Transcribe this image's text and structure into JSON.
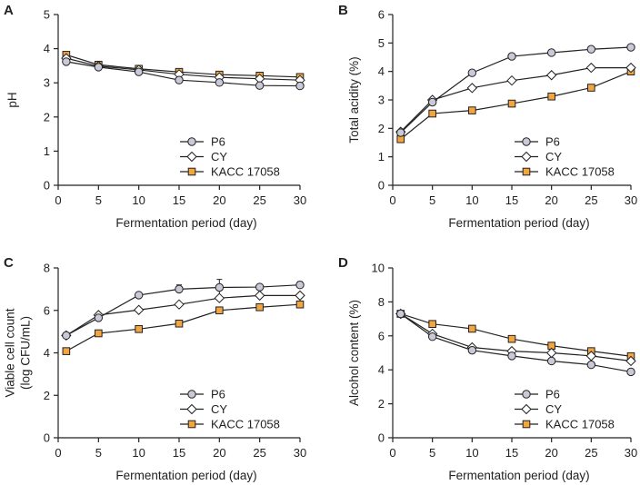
{
  "chart_data": [
    {
      "panel": "A",
      "type": "line",
      "x": [
        1,
        5,
        10,
        15,
        20,
        25,
        30
      ],
      "xlim": [
        0,
        30
      ],
      "xticks": [
        0,
        5,
        10,
        15,
        20,
        25,
        30
      ],
      "ylim": [
        0,
        5
      ],
      "yticks": [
        0,
        1,
        2,
        3,
        4,
        5
      ],
      "xlabel": "Fermentation period (day)",
      "ylabel": [
        "pH"
      ],
      "legend_position": "lower-right",
      "series": [
        {
          "name": "P6",
          "marker": "circle",
          "values": [
            3.62,
            3.46,
            3.32,
            3.08,
            3.01,
            2.92,
            2.91
          ]
        },
        {
          "name": "CY",
          "marker": "diamond",
          "values": [
            3.72,
            3.49,
            3.38,
            3.25,
            3.16,
            3.12,
            3.08
          ]
        },
        {
          "name": "KACC 17058",
          "marker": "square",
          "values": [
            3.82,
            3.53,
            3.41,
            3.32,
            3.24,
            3.21,
            3.17
          ]
        }
      ]
    },
    {
      "panel": "B",
      "type": "line",
      "x": [
        1,
        5,
        10,
        15,
        20,
        25,
        30
      ],
      "xlim": [
        0,
        30
      ],
      "xticks": [
        0,
        5,
        10,
        15,
        20,
        25,
        30
      ],
      "ylim": [
        0,
        6
      ],
      "yticks": [
        0,
        1,
        2,
        3,
        4,
        5,
        6
      ],
      "xlabel": "Fermentation period (day)",
      "ylabel": [
        "Total acidity (%)"
      ],
      "legend_position": "lower-right",
      "series": [
        {
          "name": "P6",
          "marker": "circle",
          "values": [
            1.85,
            2.92,
            3.95,
            4.53,
            4.66,
            4.78,
            4.85
          ]
        },
        {
          "name": "CY",
          "marker": "diamond",
          "values": [
            1.88,
            3.0,
            3.42,
            3.68,
            3.87,
            4.13,
            4.13
          ]
        },
        {
          "name": "KACC 17058",
          "marker": "square",
          "values": [
            1.62,
            2.52,
            2.63,
            2.87,
            3.12,
            3.43,
            4.0
          ]
        }
      ]
    },
    {
      "panel": "C",
      "type": "line",
      "x": [
        1,
        5,
        10,
        15,
        20,
        25,
        30
      ],
      "xlim": [
        0,
        30
      ],
      "xticks": [
        0,
        5,
        10,
        15,
        20,
        25,
        30
      ],
      "ylim": [
        0,
        8
      ],
      "yticks": [
        0,
        2,
        4,
        6,
        8
      ],
      "xlabel": "Fermentation period (day)",
      "ylabel": [
        "Viable cell count",
        "(log CFU/mL)"
      ],
      "legend_position": "lower-right",
      "series": [
        {
          "name": "P6",
          "marker": "circle",
          "values": [
            4.82,
            5.65,
            6.72,
            7.0,
            7.08,
            7.1,
            7.2
          ],
          "error": [
            0,
            0,
            0,
            0.2,
            0.38,
            0,
            0.15
          ]
        },
        {
          "name": "CY",
          "marker": "diamond",
          "values": [
            4.82,
            5.78,
            6.02,
            6.28,
            6.58,
            6.7,
            6.7
          ]
        },
        {
          "name": "KACC 17058",
          "marker": "square",
          "values": [
            4.08,
            4.92,
            5.12,
            5.38,
            6.0,
            6.15,
            6.28
          ]
        }
      ]
    },
    {
      "panel": "D",
      "type": "line",
      "x": [
        1,
        5,
        10,
        15,
        20,
        25,
        30
      ],
      "xlim": [
        0,
        30
      ],
      "xticks": [
        0,
        5,
        10,
        15,
        20,
        25,
        30
      ],
      "ylim": [
        0,
        10
      ],
      "yticks": [
        0,
        2,
        4,
        6,
        8,
        10
      ],
      "xlabel": "Fermentation period (day)",
      "ylabel": [
        "Alcohol content (%)"
      ],
      "legend_position": "lower-right",
      "series": [
        {
          "name": "P6",
          "marker": "circle",
          "values": [
            7.3,
            5.95,
            5.15,
            4.82,
            4.52,
            4.3,
            3.88
          ]
        },
        {
          "name": "CY",
          "marker": "diamond",
          "values": [
            7.3,
            6.12,
            5.32,
            5.1,
            5.0,
            4.82,
            4.52
          ]
        },
        {
          "name": "KACC 17058",
          "marker": "square",
          "values": [
            7.3,
            6.7,
            6.42,
            5.82,
            5.42,
            5.1,
            4.8
          ]
        }
      ]
    }
  ],
  "colors": {
    "circle_fill": "#c9c9d8",
    "diamond_fill": "#ffffff",
    "square_fill": "#f2a541",
    "line": "#222222"
  }
}
